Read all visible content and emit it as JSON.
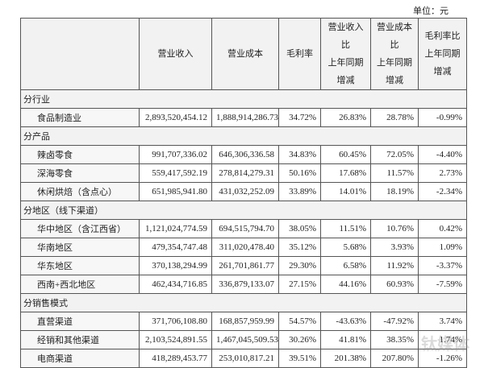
{
  "unit": "单位：元",
  "table": {
    "headers": [
      "营业收入",
      "营业成本",
      "毛利率",
      [
        "营业收入比",
        "上年同期",
        "增减"
      ],
      [
        "营业成本比",
        "上年同期",
        "增减"
      ],
      [
        "毛利率比",
        "上年同期",
        "增减"
      ]
    ],
    "sections": [
      {
        "title": "分行业",
        "rows": [
          [
            "食品制造业",
            "2,893,520,454.12",
            "1,888,914,286.73",
            "34.72%",
            "26.83%",
            "28.78%",
            "-0.99%"
          ]
        ]
      },
      {
        "title": "分产品",
        "rows": [
          [
            "辣卤零食",
            "991,707,336.02",
            "646,306,336.58",
            "34.83%",
            "60.45%",
            "72.05%",
            "-4.40%"
          ],
          [
            "深海零食",
            "559,417,592.19",
            "278,814,279.31",
            "50.16%",
            "17.68%",
            "11.57%",
            "2.73%"
          ],
          [
            "休闲烘焙（含点心）",
            "651,985,941.80",
            "431,032,252.09",
            "33.89%",
            "14.01%",
            "18.19%",
            "-2.34%"
          ]
        ]
      },
      {
        "title": "分地区（线下渠道）",
        "rows": [
          [
            "华中地区（含江西省）",
            "1,121,024,774.59",
            "694,515,794.70",
            "38.05%",
            "11.51%",
            "10.76%",
            "0.42%"
          ],
          [
            "华南地区",
            "479,354,747.48",
            "311,020,478.40",
            "35.12%",
            "5.68%",
            "3.93%",
            "1.09%"
          ],
          [
            "华东地区",
            "370,138,294.99",
            "261,701,861.77",
            "29.30%",
            "6.58%",
            "11.92%",
            "-3.37%"
          ],
          [
            "西南+西北地区",
            "462,434,716.85",
            "336,879,133.07",
            "27.15%",
            "44.16%",
            "60.93%",
            "-7.59%"
          ]
        ]
      },
      {
        "title": "分销售模式",
        "rows": [
          [
            "直营渠道",
            "371,706,108.80",
            "168,857,959.99",
            "54.57%",
            "-43.63%",
            "-47.92%",
            "3.74%"
          ],
          [
            "经销和其他渠道",
            "2,103,524,891.55",
            "1,467,045,509.53",
            "30.26%",
            "41.81%",
            "38.35%",
            "1.74%"
          ],
          [
            "电商渠道",
            "418,289,453.77",
            "253,010,817.21",
            "39.51%",
            "201.38%",
            "207.80%",
            "-1.26%"
          ]
        ]
      }
    ]
  },
  "watermark": "钛媒体"
}
